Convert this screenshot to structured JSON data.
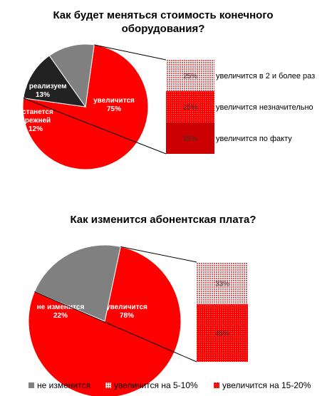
{
  "colors": {
    "red": "#ff0000",
    "dark_red": "#cc0000",
    "near_black": "#222222",
    "gray": "#808080",
    "light_pink": "#f4b6b6"
  },
  "chart_data": [
    {
      "type": "bar-of-pie",
      "title_lines": [
        "Как будет меняться стоимость конечного",
        "оборудования?"
      ],
      "pie": [
        {
          "label_lines": [
            "увеличится",
            "75%"
          ],
          "value": 75,
          "color": "#ff0000"
        },
        {
          "label_lines": [
            "не реализуем",
            "13%"
          ],
          "value": 13,
          "color": "#222222"
        },
        {
          "label_lines": [
            "останется",
            "прежней",
            "12%"
          ],
          "value": 12,
          "color": "#808080"
        }
      ],
      "breakdown_of": "увеличится",
      "bar": [
        {
          "name": "увеличится в 2 и более раз",
          "value": 25,
          "label": "25%",
          "color": "#f4b6b6",
          "pattern": "dots"
        },
        {
          "name": "увеличится незначительно",
          "value": 25,
          "label": "25%",
          "color": "#ff3333",
          "pattern": "dots"
        },
        {
          "name": "увеличится по факту",
          "value": 25,
          "label": "25%",
          "color": "#cc0000",
          "pattern": "solid"
        }
      ]
    },
    {
      "type": "bar-of-pie",
      "title_lines": [
        "Как изменится абонентская плата?"
      ],
      "pie": [
        {
          "label_lines": [
            "увеличится",
            "78%"
          ],
          "value": 78,
          "color": "#ff0000"
        },
        {
          "label_lines": [
            "не изменится",
            "22%"
          ],
          "value": 22,
          "color": "#808080"
        }
      ],
      "breakdown_of": "увеличится",
      "bar": [
        {
          "name": "увеличится на 5-10%",
          "value": 33,
          "label": "33%",
          "color": "#f4b6b6",
          "pattern": "dots"
        },
        {
          "name": "увеличится на 15-20%",
          "value": 45,
          "label": "45%",
          "color": "#ff2222",
          "pattern": "dots"
        }
      ],
      "legend": [
        {
          "name": "не изменится",
          "color": "#808080"
        },
        {
          "name": "увеличится на 5-10%",
          "color": "#f4b6b6"
        },
        {
          "name": "увеличится на 15-20%",
          "color": "#ff2222"
        }
      ]
    }
  ]
}
